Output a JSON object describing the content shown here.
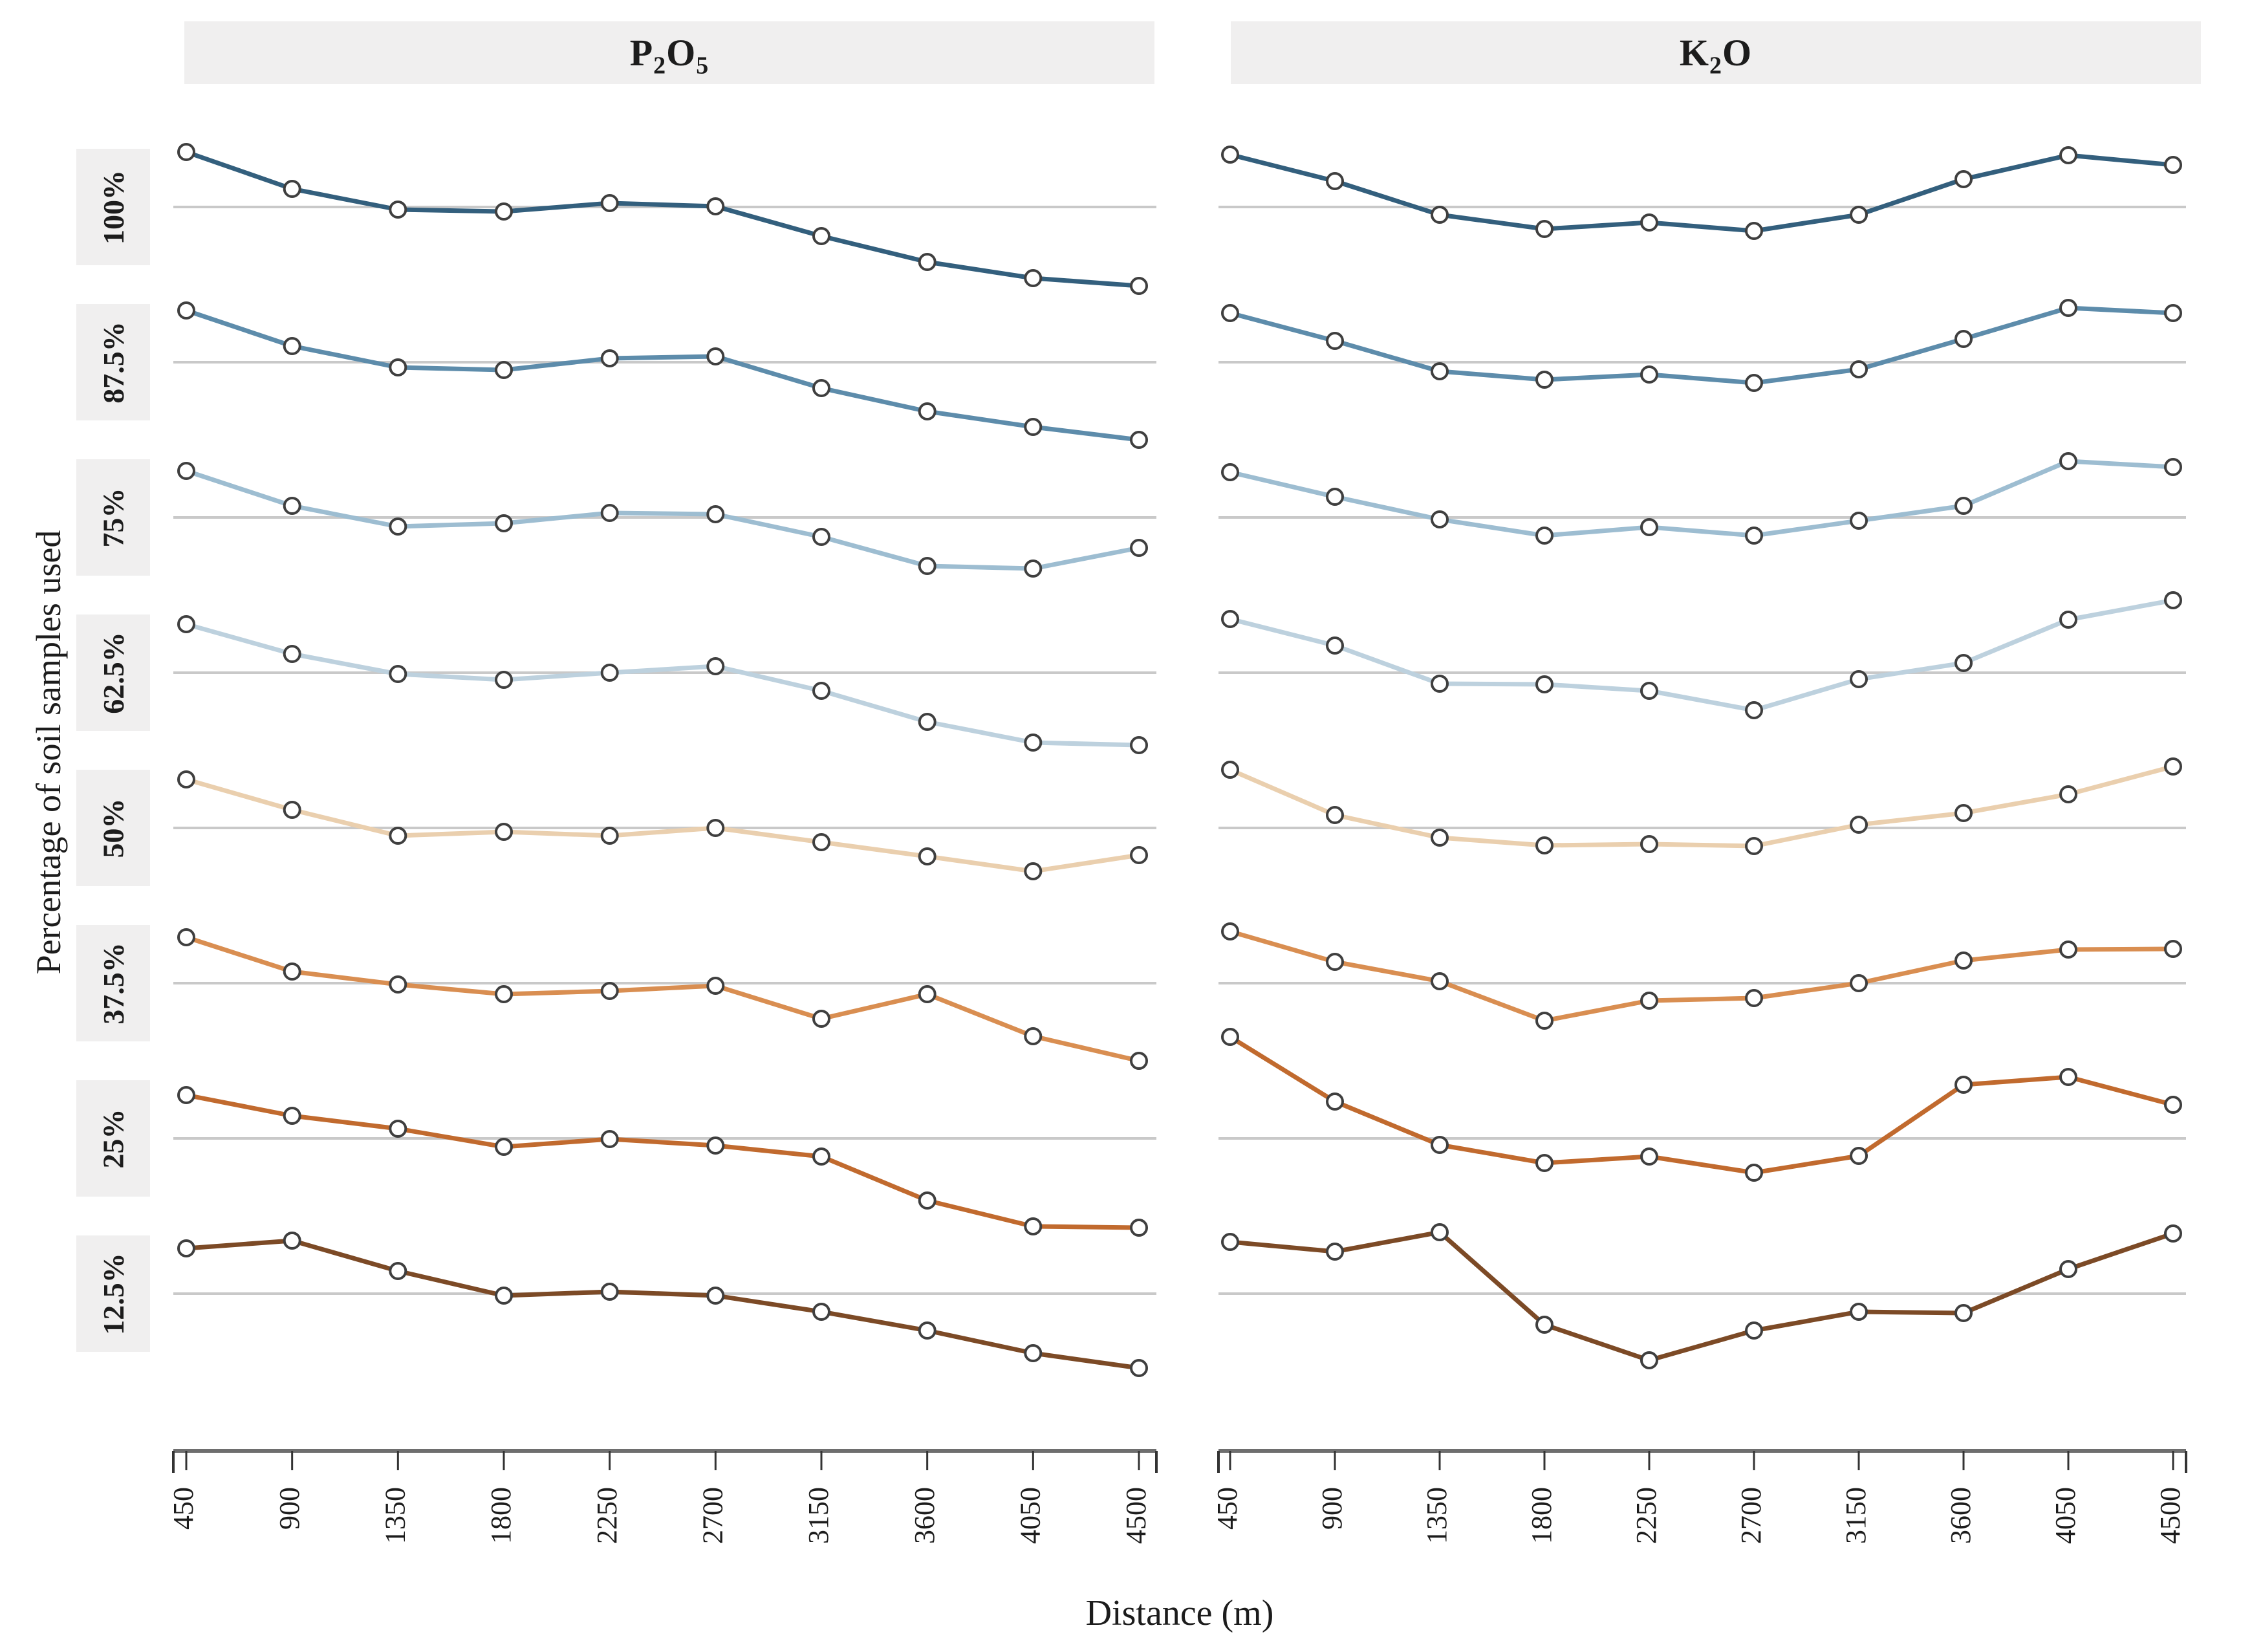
{
  "headers": {
    "col1": {
      "b1": "P",
      "s1": "2",
      "b2": "O",
      "s2": "5"
    },
    "col2": {
      "b1": "K",
      "s1": "2",
      "b2": "O",
      "s2": ""
    }
  },
  "axes": {
    "x_title": "Distance (m)",
    "y_title": "Percentage of soil samples used"
  },
  "colors": {
    "gridline": "#c9c9c9",
    "axis_line": "#6e6e6e",
    "tick": "#333333",
    "marker_fill": "#ffffff",
    "marker_stroke": "#3f3f3f",
    "header_bg": "#f0efef",
    "row_label_bg": "#f0efef",
    "text": "#1c1c1c"
  },
  "chart_data": {
    "type": "line",
    "facets": {
      "columns": [
        "P2O5",
        "K2O"
      ],
      "rows": [
        "100%",
        "87.5%",
        "75%",
        "62.5%",
        "50%",
        "37.5%",
        "25%",
        "12.5%"
      ]
    },
    "x": [
      450,
      900,
      1350,
      1800,
      2250,
      2700,
      3150,
      3600,
      4050,
      4500
    ],
    "xlabel": "Distance (m)",
    "ylabel": "Percentage of soil samples used",
    "y_encoding": "offset from the per-facet horizontal reference gridline (gridline = 0), arbitrary units estimated from the figure; no y tick labels are shown",
    "grid": "one horizontal reference line per facet",
    "legend": "none",
    "marker": "open circle",
    "rows": [
      {
        "label": "100%",
        "color": "#335f7d",
        "P2O5": [
          0.85,
          0.28,
          -0.04,
          -0.07,
          0.06,
          0.01,
          -0.45,
          -0.85,
          -1.1,
          -1.22
        ],
        "K2O": [
          0.81,
          0.4,
          -0.12,
          -0.34,
          -0.24,
          -0.37,
          -0.12,
          0.43,
          0.8,
          0.65
        ]
      },
      {
        "label": "87.5%",
        "color": "#5d8cab",
        "P2O5": [
          0.8,
          0.25,
          -0.08,
          -0.12,
          0.06,
          0.09,
          -0.4,
          -0.76,
          -1.0,
          -1.2
        ],
        "K2O": [
          0.76,
          0.33,
          -0.14,
          -0.27,
          -0.19,
          -0.32,
          -0.11,
          0.36,
          0.84,
          0.76
        ]
      },
      {
        "label": "75%",
        "color": "#9dbdd1",
        "P2O5": [
          0.72,
          0.18,
          -0.14,
          -0.09,
          0.07,
          0.05,
          -0.3,
          -0.75,
          -0.79,
          -0.47
        ],
        "K2O": [
          0.7,
          0.32,
          -0.03,
          -0.28,
          -0.15,
          -0.28,
          -0.05,
          0.18,
          0.87,
          0.78
        ]
      },
      {
        "label": "62.5%",
        "color": "#bdd1de",
        "P2O5": [
          0.75,
          0.29,
          -0.02,
          -0.11,
          0.0,
          0.1,
          -0.28,
          -0.76,
          -1.08,
          -1.12
        ],
        "K2O": [
          0.83,
          0.42,
          -0.17,
          -0.18,
          -0.28,
          -0.58,
          -0.1,
          0.15,
          0.82,
          1.12
        ]
      },
      {
        "label": "50%",
        "color": "#eacfae",
        "P2O5": [
          0.75,
          0.28,
          -0.12,
          -0.06,
          -0.12,
          0.0,
          -0.22,
          -0.44,
          -0.67,
          -0.42
        ],
        "K2O": [
          0.9,
          0.2,
          -0.15,
          -0.27,
          -0.25,
          -0.28,
          0.05,
          0.23,
          0.52,
          0.95
        ]
      },
      {
        "label": "37.5%",
        "color": "#d98e51",
        "P2O5": [
          0.71,
          0.18,
          -0.02,
          -0.17,
          -0.12,
          -0.04,
          -0.55,
          -0.17,
          -0.82,
          -1.2
        ],
        "K2O": [
          0.8,
          0.33,
          0.03,
          -0.58,
          -0.27,
          -0.23,
          0.0,
          0.35,
          0.52,
          0.53
        ]
      },
      {
        "label": "25%",
        "color": "#c16a2e",
        "P2O5": [
          0.67,
          0.35,
          0.15,
          -0.13,
          -0.01,
          -0.11,
          -0.28,
          -0.96,
          -1.36,
          -1.38
        ],
        "K2O": [
          1.57,
          0.57,
          -0.1,
          -0.38,
          -0.28,
          -0.53,
          -0.27,
          0.83,
          0.95,
          0.52
        ]
      },
      {
        "label": "12.5%",
        "color": "#7c4a26",
        "P2O5": [
          0.7,
          0.82,
          0.35,
          -0.03,
          0.03,
          -0.03,
          -0.28,
          -0.57,
          -0.92,
          -1.15
        ],
        "K2O": [
          0.8,
          0.65,
          0.95,
          -0.48,
          -1.03,
          -0.57,
          -0.28,
          -0.3,
          0.38,
          0.93
        ]
      }
    ]
  }
}
